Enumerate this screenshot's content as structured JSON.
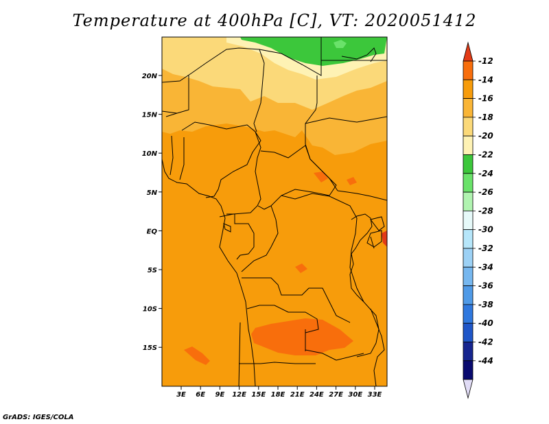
{
  "title": "Temperature at 400hPa [C], VT: 2020051412",
  "credit": "GrADS: IGES/COLA",
  "map": {
    "lat_labels": [
      "20N",
      "15N",
      "10N",
      "5N",
      "EQ",
      "5S",
      "10S",
      "15S"
    ],
    "lat_values": [
      20,
      15,
      10,
      5,
      0,
      -5,
      -10,
      -15
    ],
    "lon_labels": [
      "3E",
      "6E",
      "9E",
      "12E",
      "15E",
      "18E",
      "21E",
      "24E",
      "27E",
      "30E",
      "33E"
    ],
    "lon_values": [
      3,
      6,
      9,
      12,
      15,
      18,
      21,
      24,
      27,
      30,
      33
    ],
    "dominant_band": "-16 to -14"
  },
  "colorbar": {
    "labels": [
      "-12",
      "-14",
      "-16",
      "-18",
      "-20",
      "-22",
      "-24",
      "-26",
      "-28",
      "-30",
      "-32",
      "-34",
      "-36",
      "-38",
      "-40",
      "-42",
      "-44"
    ],
    "colors": [
      "#e33b16",
      "#f86e0c",
      "#f79c0b",
      "#f9b536",
      "#fbd979",
      "#fef2b4",
      "#3cc73b",
      "#6ae26a",
      "#b0f3b0",
      "#e6f9f9",
      "#b6e6fa",
      "#9cd1f5",
      "#76b7ef",
      "#4f9ae7",
      "#2f78de",
      "#1f56c8",
      "#16258f",
      "#090a6f",
      "#e1dcf6"
    ]
  }
}
